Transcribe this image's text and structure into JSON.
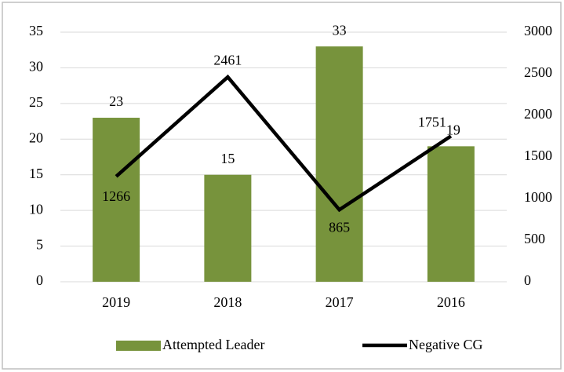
{
  "chart_data": {
    "type": "bar",
    "categories": [
      "2019",
      "2018",
      "2017",
      "2016"
    ],
    "series": [
      {
        "name": "Attempted Leader",
        "type": "bar",
        "color": "#77933c",
        "values": [
          23,
          15,
          33,
          19
        ]
      },
      {
        "name": "Negative CG",
        "type": "line",
        "axis": "y2",
        "color": "#000000",
        "values": [
          1266,
          2461,
          865,
          1751
        ]
      }
    ],
    "ylim": [
      0,
      35
    ],
    "yticks": [
      0,
      5,
      10,
      15,
      20,
      25,
      30,
      35
    ],
    "y2lim": [
      0,
      3000
    ],
    "y2ticks": [
      0,
      500,
      1000,
      1500,
      2000,
      2500,
      3000
    ],
    "grid": true,
    "legend": "bottom"
  }
}
